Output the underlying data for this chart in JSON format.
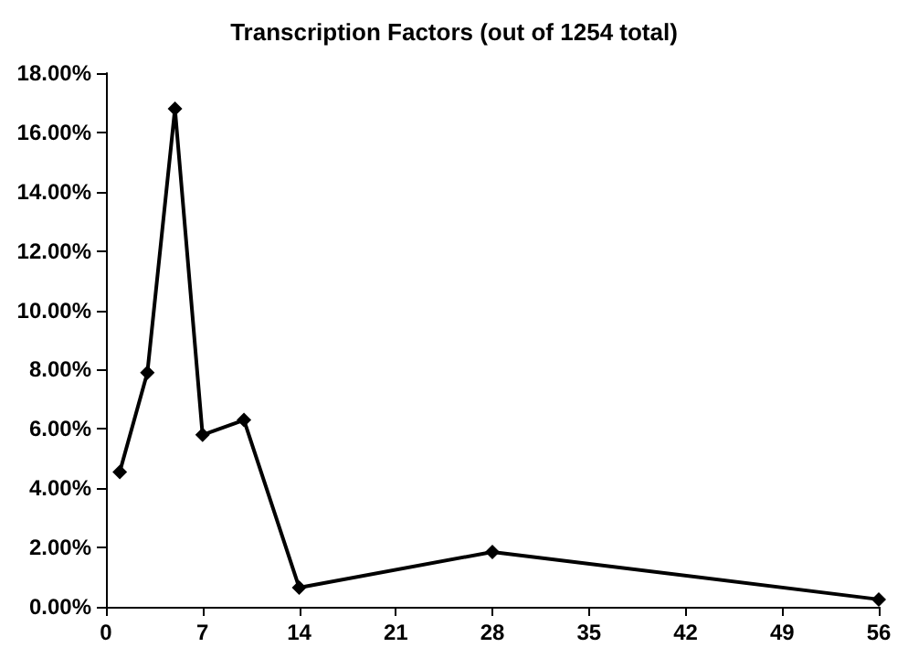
{
  "chart_data": {
    "type": "line",
    "title": "Transcription Factors (out of 1254 total)",
    "x": [
      1,
      3,
      5,
      7,
      10,
      14,
      28,
      56
    ],
    "series": [
      {
        "color": "#000000",
        "values": [
          4.55,
          7.9,
          16.8,
          5.8,
          6.3,
          0.65,
          1.85,
          0.25
        ]
      }
    ],
    "xlim": [
      0,
      56
    ],
    "xticks": [
      0,
      7,
      14,
      21,
      28,
      35,
      42,
      49,
      56
    ],
    "ylim": [
      0,
      18
    ],
    "yticks": [
      {
        "value": 0,
        "label": "0.00%"
      },
      {
        "value": 2,
        "label": "2.00%"
      },
      {
        "value": 4,
        "label": "4.00%"
      },
      {
        "value": 6,
        "label": "6.00%"
      },
      {
        "value": 8,
        "label": "8.00%"
      },
      {
        "value": 10,
        "label": "10.00%"
      },
      {
        "value": 12,
        "label": "12.00%"
      },
      {
        "value": 14,
        "label": "14.00%"
      },
      {
        "value": 16,
        "label": "16.00%"
      },
      {
        "value": 18,
        "label": "18.00%"
      }
    ],
    "grid": false,
    "marker": "diamond",
    "line_style": "solid"
  }
}
